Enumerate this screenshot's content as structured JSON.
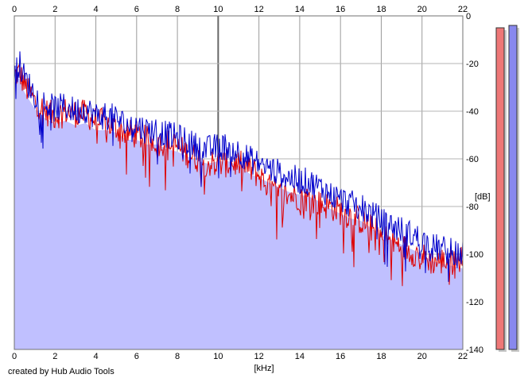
{
  "chart_data": {
    "type": "line",
    "xlabel": "[kHz]",
    "ylabel": "[dB]",
    "xlim": [
      0,
      22
    ],
    "ylim": [
      -140,
      0
    ],
    "x_ticks": [
      0,
      2,
      4,
      6,
      8,
      10,
      12,
      14,
      16,
      18,
      20,
      22
    ],
    "y_ticks": [
      0,
      -20,
      -40,
      -60,
      -80,
      -100,
      -120,
      -140
    ],
    "y_tick_labels": [
      "0",
      "-20",
      "-40",
      "-60",
      "-80",
      "-100",
      "-120",
      "-140"
    ],
    "grid": true,
    "series": [
      {
        "color": "#0000cc",
        "fill": "#c0c0ff",
        "x": [
          0,
          0.25,
          0.5,
          1,
          1.5,
          2,
          2.5,
          3,
          3.5,
          4,
          4.5,
          5,
          5.5,
          6,
          6.5,
          7,
          7.5,
          8,
          8.5,
          9,
          9.5,
          10,
          10.5,
          11,
          11.5,
          12,
          12.5,
          13,
          13.5,
          14,
          14.5,
          15,
          15.5,
          16,
          16.5,
          17,
          17.5,
          18,
          18.5,
          19,
          19.5,
          20,
          20.5,
          21,
          21.5,
          22
        ],
        "y": [
          -22,
          -20,
          -26,
          -33,
          -37,
          -39,
          -38,
          -40,
          -39,
          -42,
          -42,
          -43,
          -46,
          -46,
          -48,
          -48,
          -50,
          -51,
          -53,
          -55,
          -56,
          -55,
          -55,
          -57,
          -60,
          -62,
          -64,
          -66,
          -68,
          -69,
          -70,
          -72,
          -75,
          -77,
          -79,
          -80,
          -83,
          -86,
          -88,
          -90,
          -92,
          -94,
          -97,
          -98,
          -99,
          -100
        ]
      },
      {
        "color": "#dd0000",
        "x": [
          0,
          0.25,
          0.5,
          1,
          1.5,
          2,
          2.5,
          3,
          3.5,
          4,
          4.5,
          5,
          5.5,
          6,
          6.5,
          7,
          7.5,
          8,
          8.5,
          9,
          9.5,
          10,
          10.5,
          11,
          11.5,
          12,
          12.5,
          13,
          13.5,
          14,
          14.5,
          15,
          15.5,
          16,
          16.5,
          17,
          17.5,
          18,
          18.5,
          19,
          19.5,
          20,
          20.5,
          21,
          21.5,
          22
        ],
        "y": [
          -25,
          -24,
          -29,
          -36,
          -40,
          -42,
          -40,
          -41,
          -41,
          -44,
          -45,
          -47,
          -49,
          -50,
          -52,
          -53,
          -53,
          -55,
          -58,
          -60,
          -62,
          -62,
          -62,
          -62,
          -64,
          -67,
          -72,
          -75,
          -75,
          -76,
          -77,
          -79,
          -80,
          -82,
          -84,
          -86,
          -89,
          -92,
          -95,
          -97,
          -99,
          -101,
          -103,
          -103,
          -102,
          -102
        ]
      }
    ],
    "level_bars": [
      {
        "color": "#ee7777",
        "value": -5
      },
      {
        "color": "#8888ee",
        "value": -4
      }
    ]
  },
  "credit": "created by Hub Audio Tools"
}
